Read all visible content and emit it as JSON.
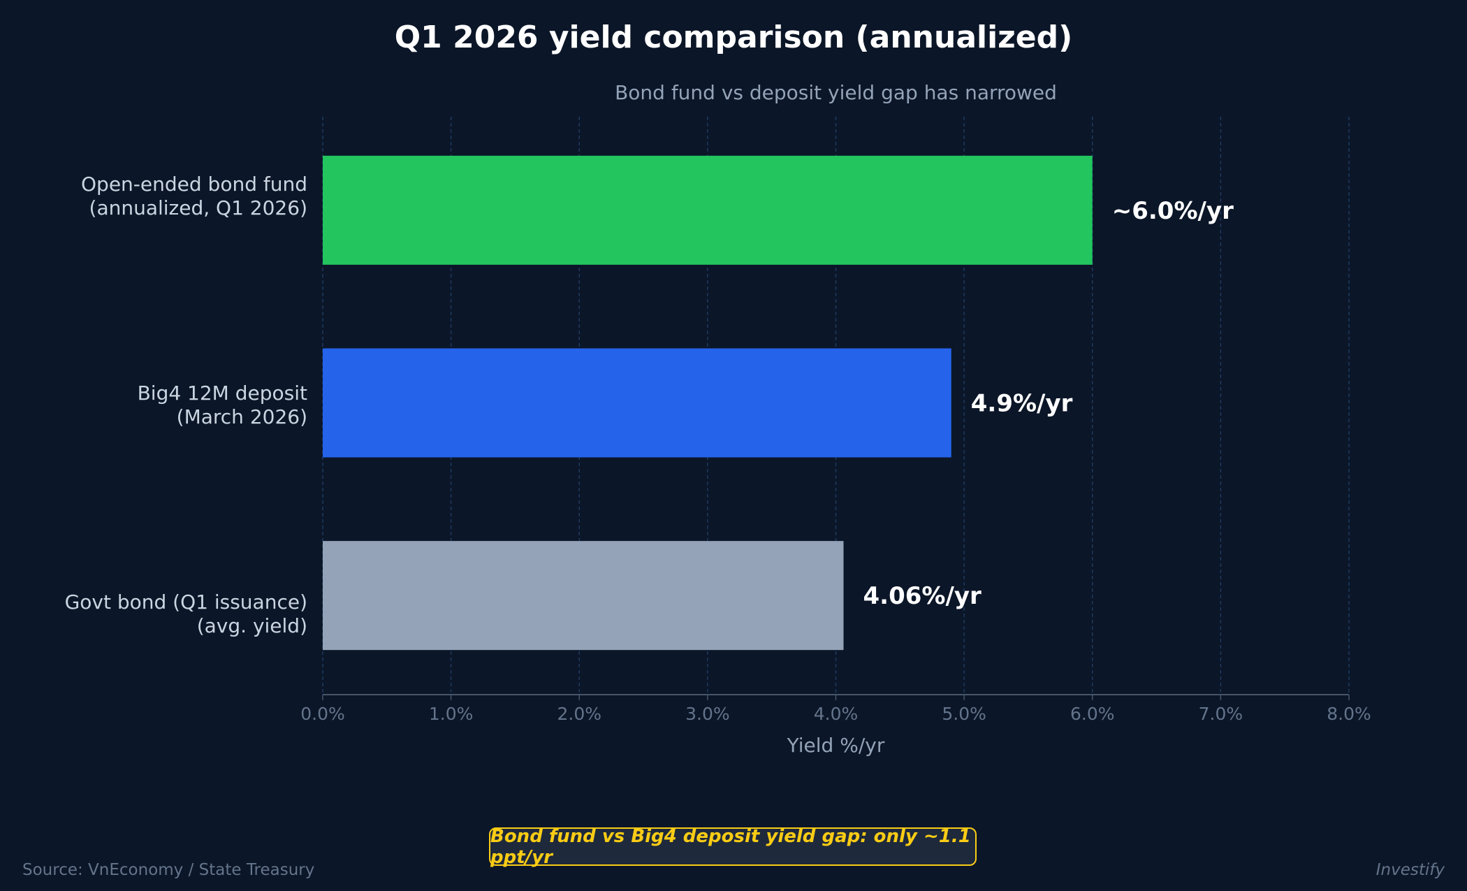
{
  "chart_data": {
    "type": "bar",
    "orientation": "horizontal",
    "title": "Q1 2026 yield comparison (annualized)",
    "subtitle": "Bond fund vs deposit yield gap has narrowed",
    "xlabel": "Yield %/yr",
    "ylabel": "",
    "xlim": [
      0,
      8
    ],
    "xticks": [
      "0.0%",
      "1.0%",
      "2.0%",
      "3.0%",
      "4.0%",
      "5.0%",
      "6.0%",
      "7.0%",
      "8.0%"
    ],
    "grid": true,
    "categories": [
      "Open-ended bond fund\n(annualized, Q1 2026)",
      "Big4 12M deposit\n(March 2026)",
      "Govt bond (Q1 issuance)\n(avg. yield)"
    ],
    "values": [
      6.0,
      4.9,
      4.06
    ],
    "data_labels": [
      "~6.0%/yr",
      "4.9%/yr",
      "4.06%/yr"
    ],
    "colors": [
      "#22c55e",
      "#2563eb",
      "#94a3b8"
    ],
    "annotation": "Bond fund vs Big4 deposit yield gap: only ~1.1 ppt/yr"
  },
  "footer": {
    "source": "Source: VnEconomy / State Treasury",
    "brand": "Investify"
  },
  "theme": {
    "background": "#0b1628",
    "grid": "#1e3a5f",
    "annotation_color": "#facc15"
  }
}
